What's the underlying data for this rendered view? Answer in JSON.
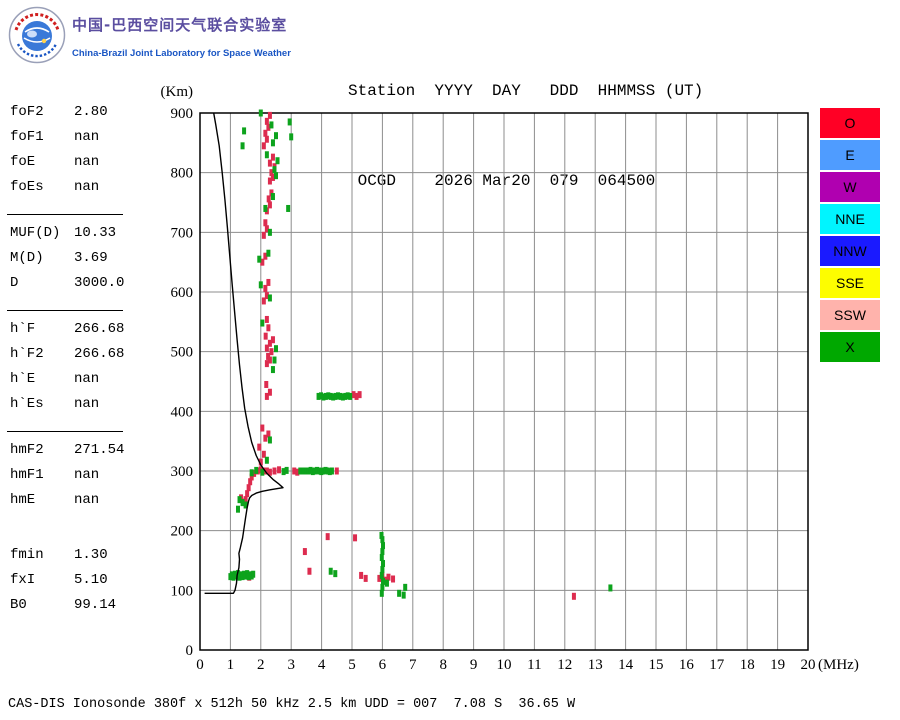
{
  "header": {
    "logo_name": "china-brazil-lab-logo",
    "lab_title_zh": "中国-巴西空间天气联合实验室",
    "lab_title_en": "China-Brazil Joint Laboratory for Space Weather",
    "station_line1": "Station  YYYY  DAY   DDD  HHMMSS (UT)",
    "station_line2": " OCGD    2026 Mar20  079  064500"
  },
  "parameters": {
    "groups": [
      {
        "rows": [
          [
            "foF2",
            "2.80"
          ],
          [
            "foF1",
            "nan"
          ],
          [
            "foE",
            "nan"
          ],
          [
            "foEs",
            "nan"
          ]
        ]
      },
      {
        "rows": [
          [
            "MUF(D)",
            "10.33"
          ],
          [
            "M(D)",
            "3.69"
          ],
          [
            "D",
            "3000.0"
          ]
        ]
      },
      {
        "rows": [
          [
            "h`F",
            "266.68"
          ],
          [
            "h`F2",
            "266.68"
          ],
          [
            "h`E",
            "nan"
          ],
          [
            "h`Es",
            "nan"
          ]
        ]
      },
      {
        "rows": [
          [
            "hmF2",
            "271.54"
          ],
          [
            "hmF1",
            "nan"
          ],
          [
            "hmE",
            "nan"
          ]
        ]
      },
      {
        "rows": [
          [
            "fmin",
            "1.30"
          ],
          [
            "fxI",
            "5.10"
          ],
          [
            "B0",
            "99.14"
          ]
        ]
      }
    ]
  },
  "legend": [
    {
      "label": "O",
      "color": "#ff0025"
    },
    {
      "label": "E",
      "color": "#4f9cff"
    },
    {
      "label": "W",
      "color": "#b000b0"
    },
    {
      "label": "NNE",
      "color": "#00f5ff"
    },
    {
      "label": "NNW",
      "color": "#1a1aff"
    },
    {
      "label": "SSE",
      "color": "#fdfd00"
    },
    {
      "label": "SSW",
      "color": "#ffb3ac"
    },
    {
      "label": "X",
      "color": "#00a800"
    }
  ],
  "footer": {
    "status_line": "CAS-DIS Ionosonde 380f x 512h 50 kHz 2.5 km UDD = 007  7.08 S  36.65 W"
  },
  "chart_data": {
    "type": "scatter",
    "title": "",
    "xlabel": "(MHz)",
    "ylabel": "(Km)",
    "xlim": [
      0,
      20
    ],
    "ylim": [
      0,
      900
    ],
    "xticks": [
      0,
      1,
      2,
      3,
      4,
      5,
      6,
      7,
      8,
      9,
      10,
      11,
      12,
      13,
      14,
      15,
      16,
      17,
      18,
      19,
      20
    ],
    "yticks": [
      0,
      100,
      200,
      300,
      400,
      500,
      600,
      700,
      800,
      900
    ],
    "grid": true,
    "legend_position": "right",
    "series": [
      {
        "name": "O-mode echoes",
        "type": "scatter",
        "color": "#dd2c4f",
        "points": [
          [
            1.3,
            124
          ],
          [
            1.5,
            126
          ],
          [
            1.62,
            122
          ],
          [
            5.3,
            125
          ],
          [
            5.45,
            120
          ],
          [
            5.9,
            120
          ],
          [
            6.0,
            124
          ],
          [
            6.1,
            117
          ],
          [
            6.2,
            122
          ],
          [
            6.35,
            119
          ],
          [
            3.45,
            165
          ],
          [
            3.6,
            132
          ],
          [
            4.2,
            190
          ],
          [
            5.1,
            188
          ],
          [
            12.3,
            90
          ],
          [
            1.35,
            255
          ],
          [
            1.42,
            248
          ],
          [
            1.5,
            252
          ],
          [
            1.55,
            262
          ],
          [
            1.6,
            272
          ],
          [
            1.65,
            282
          ],
          [
            1.7,
            290
          ],
          [
            1.78,
            296
          ],
          [
            1.9,
            300
          ],
          [
            2.0,
            302
          ],
          [
            2.1,
            300
          ],
          [
            2.2,
            300
          ],
          [
            2.3,
            298
          ],
          [
            2.45,
            300
          ],
          [
            2.6,
            302
          ],
          [
            3.1,
            300
          ],
          [
            3.2,
            298
          ],
          [
            3.45,
            300
          ],
          [
            4.5,
            300
          ],
          [
            2.0,
            315
          ],
          [
            2.1,
            328
          ],
          [
            1.95,
            340
          ],
          [
            2.15,
            355
          ],
          [
            2.25,
            362
          ],
          [
            2.05,
            372
          ],
          [
            2.2,
            425
          ],
          [
            2.3,
            432
          ],
          [
            2.18,
            445
          ],
          [
            5.05,
            428
          ],
          [
            5.15,
            425
          ],
          [
            5.25,
            428
          ],
          [
            2.2,
            480
          ],
          [
            2.3,
            486
          ],
          [
            2.24,
            492
          ],
          [
            2.35,
            500
          ],
          [
            2.2,
            506
          ],
          [
            2.3,
            514
          ],
          [
            2.4,
            520
          ],
          [
            2.16,
            526
          ],
          [
            2.25,
            540
          ],
          [
            2.2,
            554
          ],
          [
            2.1,
            585
          ],
          [
            2.2,
            594
          ],
          [
            2.15,
            606
          ],
          [
            2.25,
            616
          ],
          [
            2.05,
            650
          ],
          [
            2.15,
            660
          ],
          [
            2.1,
            695
          ],
          [
            2.2,
            706
          ],
          [
            2.15,
            716
          ],
          [
            2.2,
            736
          ],
          [
            2.3,
            746
          ],
          [
            2.26,
            756
          ],
          [
            2.35,
            766
          ],
          [
            2.3,
            786
          ],
          [
            2.4,
            792
          ],
          [
            2.35,
            800
          ],
          [
            2.45,
            810
          ],
          [
            2.3,
            816
          ],
          [
            2.4,
            826
          ],
          [
            2.1,
            845
          ],
          [
            2.2,
            856
          ],
          [
            2.15,
            866
          ],
          [
            2.25,
            876
          ],
          [
            2.2,
            886
          ],
          [
            2.3,
            896
          ]
        ]
      },
      {
        "name": "X-mode echoes",
        "type": "scatter",
        "color": "#0da31d",
        "points": [
          [
            1.0,
            123
          ],
          [
            1.05,
            126
          ],
          [
            1.1,
            122
          ],
          [
            1.15,
            127
          ],
          [
            1.2,
            124
          ],
          [
            1.25,
            128
          ],
          [
            1.3,
            122
          ],
          [
            1.35,
            126
          ],
          [
            1.4,
            123
          ],
          [
            1.45,
            127
          ],
          [
            1.5,
            124
          ],
          [
            1.55,
            128
          ],
          [
            1.6,
            123
          ],
          [
            1.65,
            126
          ],
          [
            1.7,
            124
          ],
          [
            1.75,
            127
          ],
          [
            1.25,
            236
          ],
          [
            1.3,
            252
          ],
          [
            1.4,
            247
          ],
          [
            1.5,
            243
          ],
          [
            1.7,
            297
          ],
          [
            1.85,
            301
          ],
          [
            2.05,
            298
          ],
          [
            2.75,
            299
          ],
          [
            2.85,
            301
          ],
          [
            3.3,
            300
          ],
          [
            3.4,
            300
          ],
          [
            3.5,
            300
          ],
          [
            3.57,
            300
          ],
          [
            3.64,
            301
          ],
          [
            3.71,
            299
          ],
          [
            3.78,
            300
          ],
          [
            3.85,
            301
          ],
          [
            3.92,
            300
          ],
          [
            3.99,
            299
          ],
          [
            4.06,
            300
          ],
          [
            4.13,
            301
          ],
          [
            4.2,
            300
          ],
          [
            4.27,
            299
          ],
          [
            4.34,
            300
          ],
          [
            3.9,
            425
          ],
          [
            3.98,
            426
          ],
          [
            4.06,
            424
          ],
          [
            4.14,
            425
          ],
          [
            4.22,
            426
          ],
          [
            4.3,
            425
          ],
          [
            4.38,
            424
          ],
          [
            4.46,
            425
          ],
          [
            4.54,
            426
          ],
          [
            4.62,
            425
          ],
          [
            4.7,
            424
          ],
          [
            4.78,
            425
          ],
          [
            4.86,
            426
          ],
          [
            4.94,
            425
          ],
          [
            2.2,
            318
          ],
          [
            2.3,
            352
          ],
          [
            2.4,
            470
          ],
          [
            2.45,
            486
          ],
          [
            2.5,
            505
          ],
          [
            2.05,
            548
          ],
          [
            2.3,
            590
          ],
          [
            2.0,
            612
          ],
          [
            1.95,
            655
          ],
          [
            2.25,
            665
          ],
          [
            2.3,
            700
          ],
          [
            2.9,
            740
          ],
          [
            2.15,
            740
          ],
          [
            2.4,
            760
          ],
          [
            2.5,
            795
          ],
          [
            2.45,
            805
          ],
          [
            2.55,
            820
          ],
          [
            2.2,
            830
          ],
          [
            1.4,
            845
          ],
          [
            2.4,
            850
          ],
          [
            2.5,
            862
          ],
          [
            1.45,
            870
          ],
          [
            2.35,
            880
          ],
          [
            2.95,
            885
          ],
          [
            2.0,
            900
          ],
          [
            3.0,
            860
          ],
          [
            5.98,
            95
          ],
          [
            6.0,
            105
          ],
          [
            6.02,
            115
          ],
          [
            5.98,
            125
          ],
          [
            6.0,
            135
          ],
          [
            6.02,
            145
          ],
          [
            5.98,
            155
          ],
          [
            6.0,
            165
          ],
          [
            6.02,
            175
          ],
          [
            6.0,
            185
          ],
          [
            5.97,
            192
          ],
          [
            4.3,
            132
          ],
          [
            4.45,
            128
          ],
          [
            6.7,
            92
          ],
          [
            6.75,
            105
          ],
          [
            6.55,
            95
          ],
          [
            13.5,
            104
          ],
          [
            6.15,
            112
          ]
        ]
      },
      {
        "name": "electron-density-profile",
        "type": "line",
        "color": "#000000",
        "points": [
          [
            0.15,
            95
          ],
          [
            1.1,
            95
          ],
          [
            1.15,
            100
          ],
          [
            1.2,
            112
          ],
          [
            1.22,
            125
          ],
          [
            1.28,
            138
          ],
          [
            1.3,
            152
          ],
          [
            1.28,
            162
          ],
          [
            1.33,
            172
          ],
          [
            1.4,
            188
          ],
          [
            1.45,
            205
          ],
          [
            1.5,
            222
          ],
          [
            1.55,
            238
          ],
          [
            1.6,
            250
          ],
          [
            1.63,
            255
          ],
          [
            1.7,
            259
          ],
          [
            1.85,
            263
          ],
          [
            2.05,
            266
          ],
          [
            2.3,
            268.5
          ],
          [
            2.55,
            270.5
          ],
          [
            2.73,
            272
          ],
          [
            2.6,
            278
          ],
          [
            2.4,
            286
          ],
          [
            2.2,
            296
          ],
          [
            2.0,
            310
          ],
          [
            1.85,
            326
          ],
          [
            1.7,
            348
          ],
          [
            1.58,
            375
          ],
          [
            1.47,
            405
          ],
          [
            1.38,
            440
          ],
          [
            1.3,
            478
          ],
          [
            1.22,
            520
          ],
          [
            1.14,
            565
          ],
          [
            1.06,
            612
          ],
          [
            0.98,
            660
          ],
          [
            0.9,
            708
          ],
          [
            0.82,
            755
          ],
          [
            0.73,
            800
          ],
          [
            0.63,
            845
          ],
          [
            0.52,
            880
          ],
          [
            0.45,
            900
          ]
        ]
      }
    ]
  }
}
